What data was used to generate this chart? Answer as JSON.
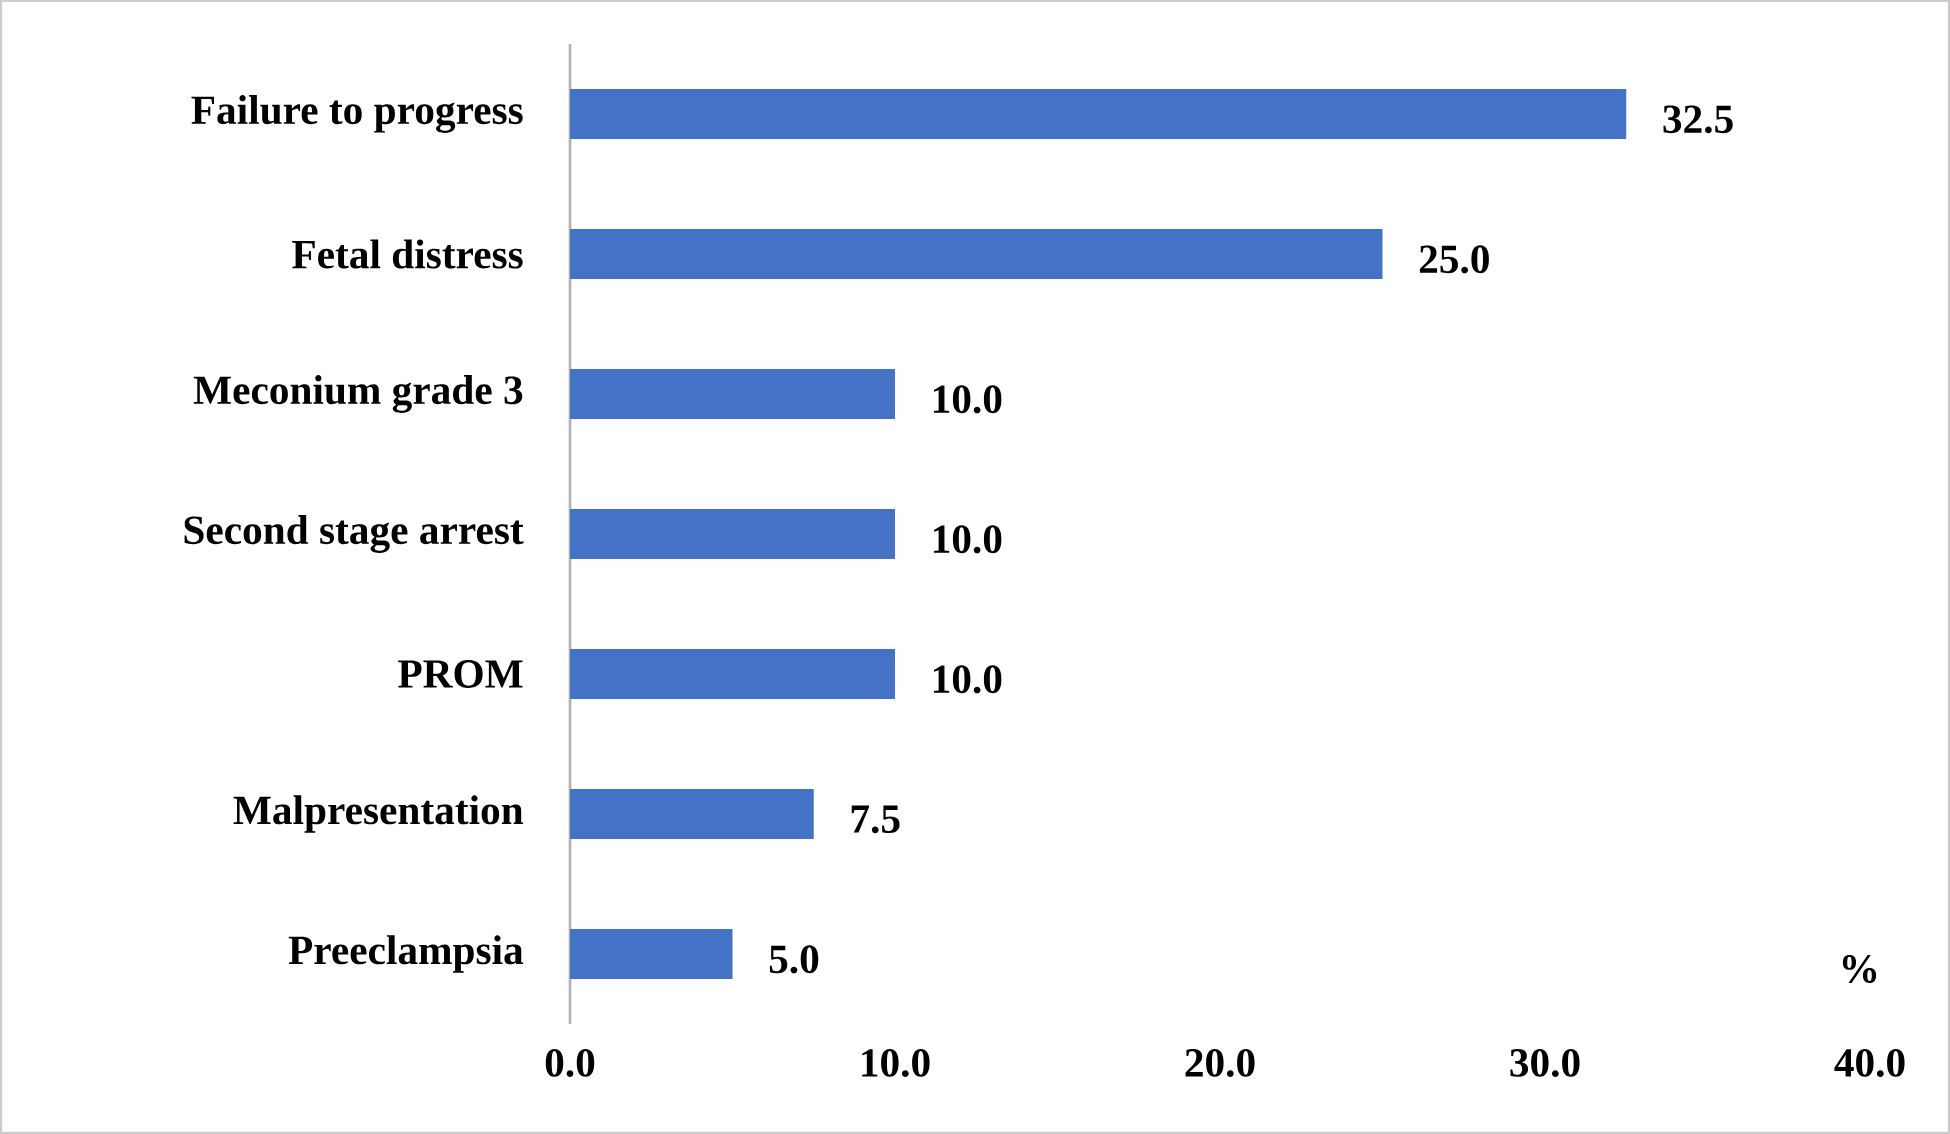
{
  "chart_data": {
    "type": "bar",
    "orientation": "horizontal",
    "xlabel": "%",
    "categories": [
      "Failure to progress",
      "Fetal distress",
      "Meconium grade 3",
      "Second stage arrest",
      "PROM",
      "Malpresentation",
      "Preeclampsia"
    ],
    "values": [
      32.5,
      25.0,
      10.0,
      10.0,
      10.0,
      7.5,
      5.0
    ],
    "value_labels": [
      "32.5",
      "25.0",
      "10.0",
      "10.0",
      "10.0",
      "7.5",
      "5.0"
    ],
    "color": "#4472c4",
    "xlim": [
      0,
      40
    ],
    "xticks": [
      {
        "value": 0,
        "label": "0.0"
      },
      {
        "value": 10,
        "label": "10.0"
      },
      {
        "value": 20,
        "label": "20.0"
      },
      {
        "value": 30,
        "label": "30.0"
      },
      {
        "value": 40,
        "label": "40.0"
      }
    ]
  }
}
